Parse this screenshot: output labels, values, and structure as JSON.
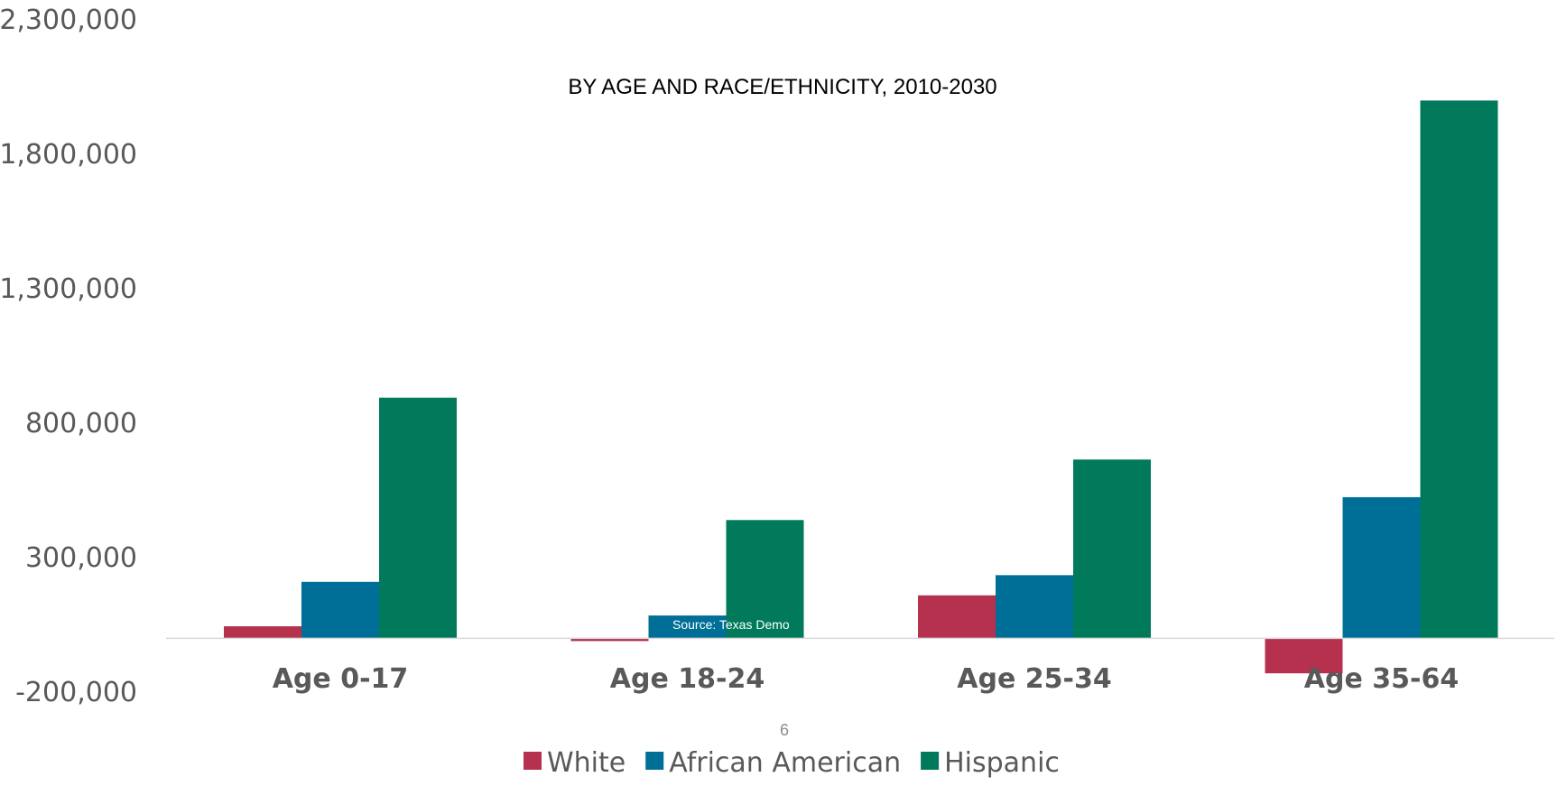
{
  "chart_data": {
    "type": "bar",
    "title": "BY AGE AND RACE/ETHNICITY, 2010-2030",
    "categories": [
      "Age 0-17",
      "Age 18-24",
      "Age 25-34",
      "Age 35-64"
    ],
    "series": [
      {
        "name": "White",
        "color": "#b5314e",
        "values": [
          45000,
          -10000,
          160000,
          -130000
        ]
      },
      {
        "name": "African American",
        "color": "#006f97",
        "values": [
          210000,
          85000,
          235000,
          525000
        ]
      },
      {
        "name": "Hispanic",
        "color": "#007a5a",
        "values": [
          895000,
          440000,
          665000,
          2000000
        ]
      }
    ],
    "y_ticks": [
      "2,300,000",
      "1,800,000",
      "1,300,000",
      "800,000",
      "300,000",
      "-200,000"
    ],
    "y_tick_values": [
      2300000,
      1800000,
      1300000,
      800000,
      300000,
      -200000
    ],
    "ylim": [
      -200000,
      2300000
    ],
    "xlabel": "",
    "ylabel": "",
    "grid": false,
    "legend_position": "bottom",
    "axis_line_color": "#d9d9d9",
    "text_color": "#595959"
  },
  "source_note": "Source: Texas Demo",
  "page_number": "6"
}
